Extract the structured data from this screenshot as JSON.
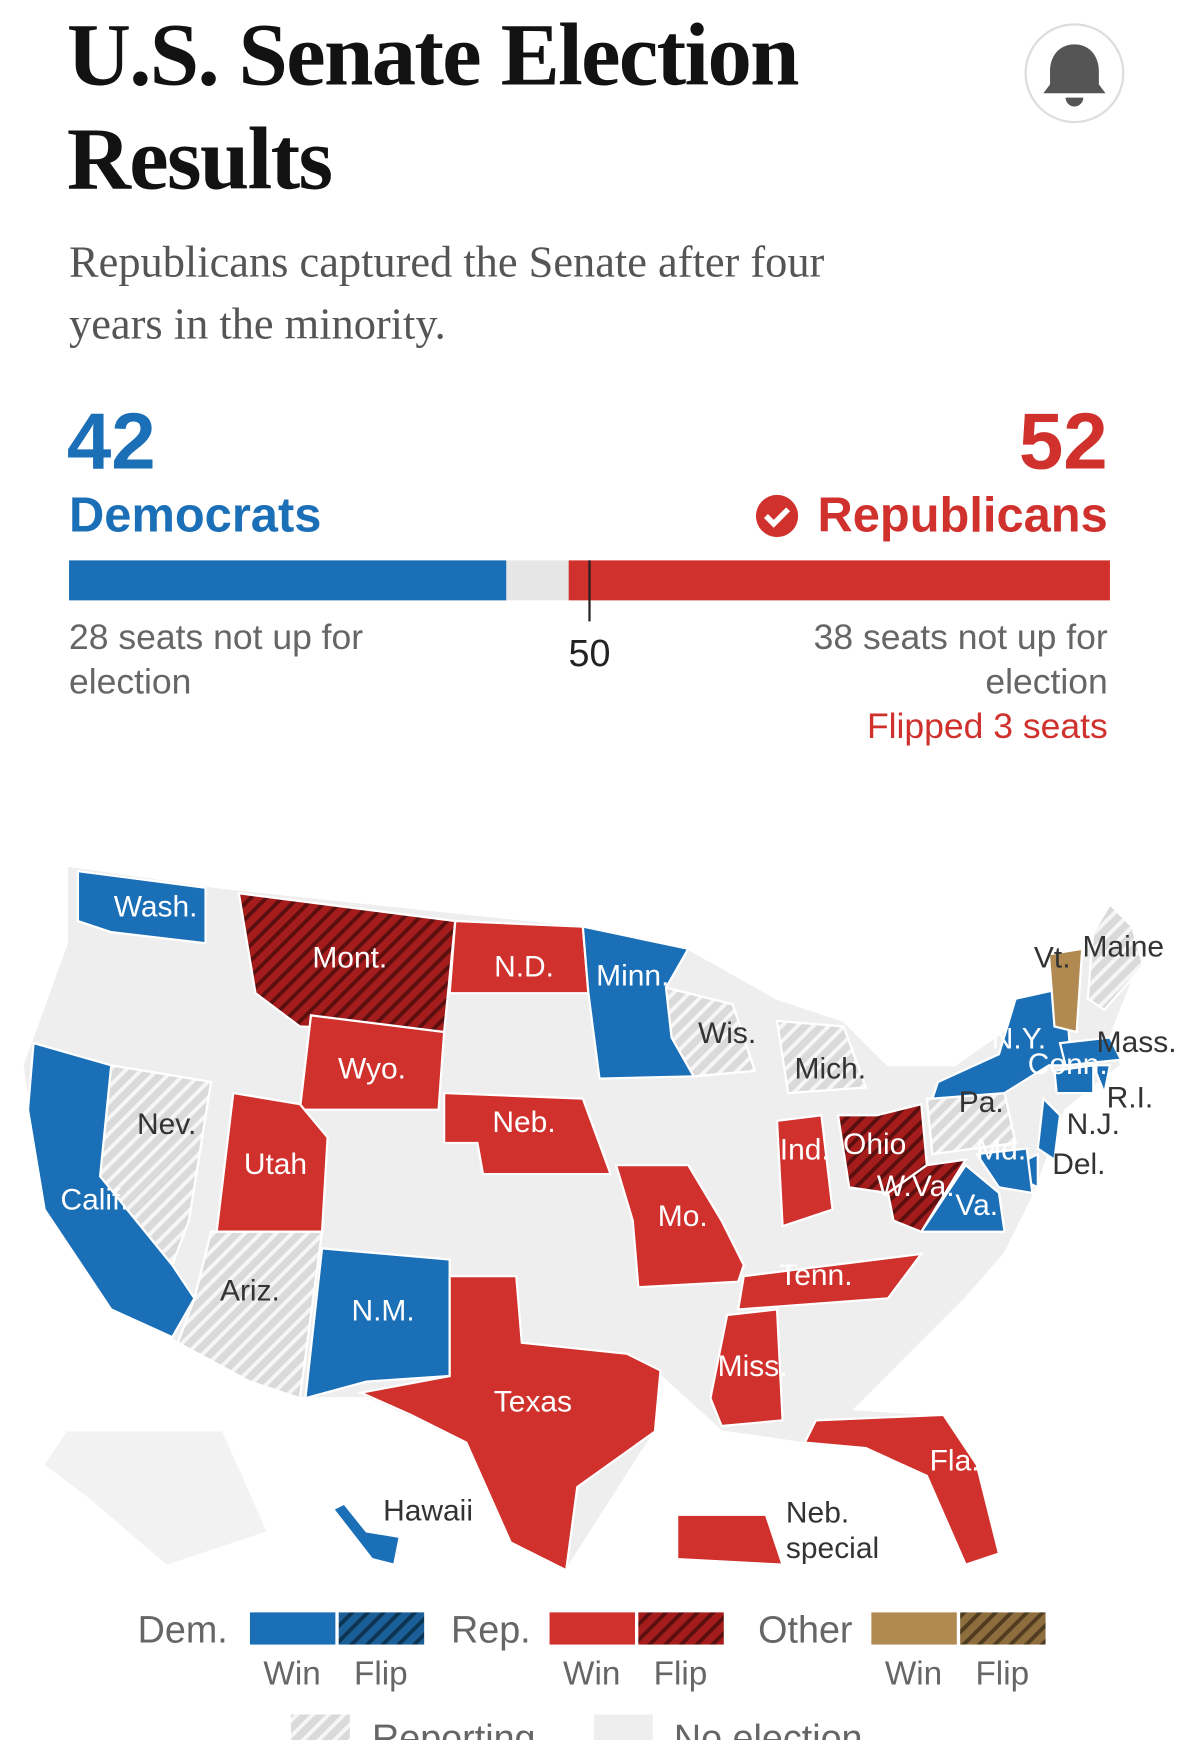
{
  "header": {
    "title_lines": [
      "U.S. Senate Election",
      "Results"
    ],
    "subtitle_lines": [
      "Republicans captured the Senate after four",
      "years in the minority."
    ]
  },
  "tally": {
    "democrats": {
      "seats": 42,
      "label": "Democrats",
      "note_lines": [
        "28 seats not up for",
        "election"
      ]
    },
    "republicans": {
      "seats": 52,
      "label": "Republicans",
      "note_lines": [
        "38 seats not up for",
        "election"
      ],
      "flipped": "Flipped 3 seats"
    },
    "majority": 50
  },
  "colors": {
    "dem-win": "#1a6fb7",
    "dem-flip": "#1a5f98",
    "rep-win": "#d0312d",
    "rep-flip": "#a51c1c",
    "other-win": "#b08a50",
    "other-flip": "#8f6e3d",
    "reporting": "#dadada",
    "no-election": "#eeeeee"
  },
  "map": {
    "states": [
      {
        "label": "Wash.",
        "result": "dem-win"
      },
      {
        "label": "Mont.",
        "result": "rep-flip"
      },
      {
        "label": "N.D.",
        "result": "rep-win"
      },
      {
        "label": "Minn.",
        "result": "dem-win"
      },
      {
        "label": "Wis.",
        "result": "reporting"
      },
      {
        "label": "Mich.",
        "result": "reporting"
      },
      {
        "label": "Wyo.",
        "result": "rep-win"
      },
      {
        "label": "Neb.",
        "result": "rep-win"
      },
      {
        "label": "Nev.",
        "result": "reporting"
      },
      {
        "label": "Utah",
        "result": "rep-win"
      },
      {
        "label": "Calif.",
        "result": "dem-win"
      },
      {
        "label": "Ariz.",
        "result": "reporting"
      },
      {
        "label": "N.M.",
        "result": "dem-win"
      },
      {
        "label": "Texas",
        "result": "rep-win"
      },
      {
        "label": "Mo.",
        "result": "rep-win"
      },
      {
        "label": "Ind.",
        "result": "rep-win"
      },
      {
        "label": "Ohio",
        "result": "rep-flip"
      },
      {
        "label": "W.Va.",
        "result": "rep-flip"
      },
      {
        "label": "Va.",
        "result": "dem-win"
      },
      {
        "label": "Tenn.",
        "result": "rep-win"
      },
      {
        "label": "Miss.",
        "result": "rep-win"
      },
      {
        "label": "Fla.",
        "result": "rep-win"
      },
      {
        "label": "Pa.",
        "result": "reporting"
      },
      {
        "label": "N.Y.",
        "result": "dem-win"
      },
      {
        "label": "Vt.",
        "result": "other-win"
      },
      {
        "label": "Maine",
        "result": "reporting"
      },
      {
        "label": "Mass.",
        "result": "dem-win"
      },
      {
        "label": "Conn.",
        "result": "dem-win"
      },
      {
        "label": "R.I.",
        "result": "dem-win"
      },
      {
        "label": "N.J.",
        "result": "dem-win"
      },
      {
        "label": "Del.",
        "result": "dem-win"
      },
      {
        "label": "Md.",
        "result": "dem-win"
      },
      {
        "label": "Hawaii",
        "result": "dem-win"
      },
      {
        "label_lines": [
          "Neb.",
          "special"
        ],
        "result": "rep-win"
      }
    ]
  },
  "legend": {
    "parties": [
      {
        "label": "Dem.",
        "win": "Win",
        "flip": "Flip",
        "key": "dem"
      },
      {
        "label": "Rep.",
        "win": "Win",
        "flip": "Flip",
        "key": "rep"
      },
      {
        "label": "Other",
        "win": "Win",
        "flip": "Flip",
        "key": "other"
      }
    ],
    "status": [
      {
        "label": "Reporting",
        "key": "reporting"
      },
      {
        "label": "No election",
        "key": "no-election"
      }
    ]
  }
}
